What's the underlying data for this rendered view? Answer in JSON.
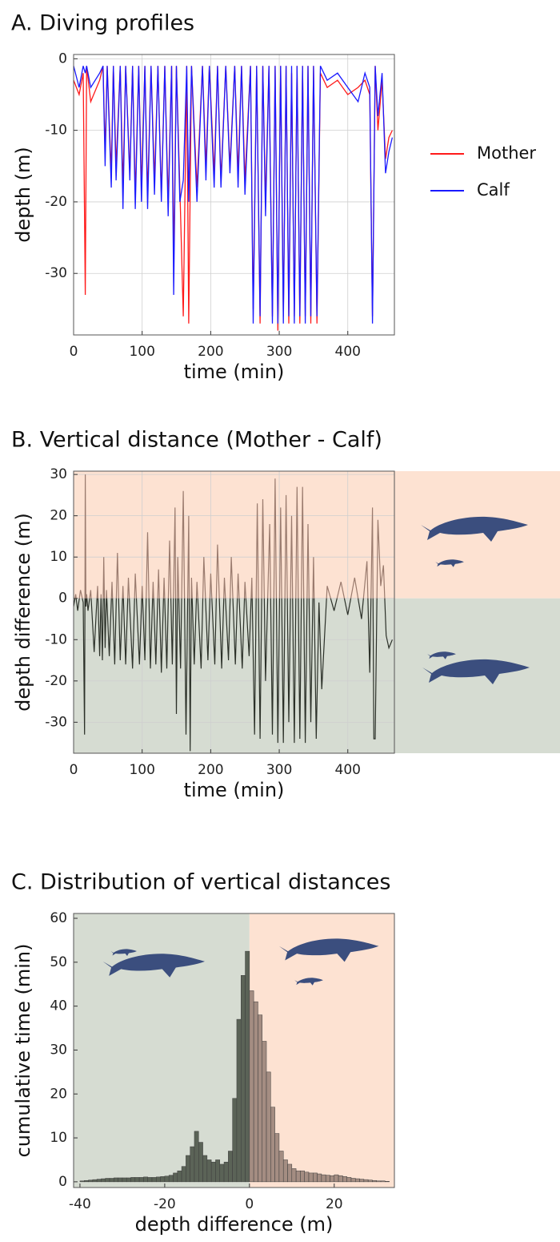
{
  "chart_data": [
    {
      "type": "line",
      "title": "A. Diving profiles",
      "x_label": "time (min)",
      "y_label": "depth (m)",
      "x": [
        0,
        8,
        14,
        17,
        19,
        25,
        38,
        43,
        46,
        49,
        55,
        58,
        62,
        68,
        72,
        76,
        82,
        86,
        90,
        95,
        99,
        104,
        108,
        113,
        118,
        123,
        128,
        133,
        138,
        143,
        146,
        150,
        155,
        160,
        165,
        168,
        172,
        180,
        188,
        193,
        198,
        205,
        210,
        215,
        222,
        228,
        235,
        240,
        245,
        250,
        258,
        262,
        267,
        272,
        276,
        280,
        285,
        290,
        294,
        298,
        302,
        306,
        310,
        314,
        318,
        322,
        326,
        330,
        334,
        338,
        342,
        346,
        350,
        355,
        360,
        370,
        385,
        400,
        415,
        425,
        432,
        436,
        440,
        444,
        450,
        455,
        460,
        465
      ],
      "series": [
        {
          "name": "Mother",
          "color": "#ff1a1a",
          "values": [
            -3,
            -5,
            -2,
            -33,
            -1,
            -6,
            -3,
            -1,
            -13,
            -1,
            -16,
            -1,
            -15,
            -1,
            -18,
            -1,
            -16,
            -1,
            -19,
            -1,
            -18,
            -1,
            -19,
            -1,
            -17,
            -1,
            -19,
            -1,
            -20,
            -1,
            -28,
            -1,
            -18,
            -36,
            -1,
            -37,
            -1,
            -18,
            -1,
            -15,
            -1,
            -16,
            -1,
            -17,
            -1,
            -15,
            -1,
            -16,
            -1,
            -17,
            -1,
            -35,
            -1,
            -37,
            -1,
            -20,
            -1,
            -36,
            -1,
            -38,
            -1,
            -36,
            -1,
            -37,
            -2,
            -36,
            -1,
            -37,
            -1,
            -36,
            -1,
            -37,
            -1,
            -37,
            -2,
            -4,
            -3,
            -5,
            -4,
            -3,
            -5,
            -36,
            -1,
            -10,
            -3,
            -14,
            -11,
            -10
          ]
        },
        {
          "name": "Calf",
          "color": "#1a1aff",
          "values": [
            -1,
            -4,
            -1,
            -2,
            -1,
            -4,
            -2,
            -1,
            -15,
            -1,
            -18,
            -1,
            -17,
            -1,
            -21,
            -1,
            -17,
            -1,
            -21,
            -1,
            -20,
            -1,
            -21,
            -1,
            -19,
            -1,
            -20,
            -1,
            -22,
            -1,
            -33,
            -1,
            -20,
            -17,
            -1,
            -20,
            -1,
            -20,
            -1,
            -17,
            -1,
            -18,
            -1,
            -18,
            -1,
            -16,
            -1,
            -18,
            -1,
            -19,
            -1,
            -37,
            -1,
            -36,
            -1,
            -22,
            -1,
            -37,
            -1,
            -37,
            -1,
            -37,
            -1,
            -36,
            -1,
            -37,
            -1,
            -36,
            -1,
            -37,
            -1,
            -36,
            -1,
            -36,
            -1,
            -3,
            -2,
            -4,
            -6,
            -2,
            -4,
            -37,
            -1,
            -8,
            -2,
            -16,
            -13,
            -11
          ]
        }
      ],
      "xlim": [
        0,
        468
      ],
      "ylim": [
        -38.6,
        0.6
      ],
      "xticks": [
        0,
        100,
        200,
        300,
        400
      ],
      "yticks": [
        0,
        -10,
        -20,
        -30
      ],
      "grid": true,
      "legend": "right"
    },
    {
      "type": "line",
      "title": "B. Vertical distance (Mother - Calf)",
      "x_label": "time (min)",
      "y_label": "depth difference (m)",
      "x": [
        0,
        3,
        6,
        10,
        14,
        16,
        17,
        18,
        19,
        21,
        25,
        30,
        35,
        38,
        40,
        42,
        44,
        46,
        48,
        52,
        56,
        60,
        64,
        68,
        72,
        76,
        80,
        86,
        90,
        96,
        100,
        104,
        108,
        112,
        116,
        120,
        124,
        128,
        132,
        136,
        140,
        144,
        148,
        150,
        152,
        156,
        160,
        164,
        168,
        170,
        172,
        176,
        180,
        186,
        190,
        196,
        200,
        206,
        210,
        216,
        220,
        226,
        230,
        236,
        240,
        246,
        250,
        256,
        260,
        264,
        268,
        272,
        276,
        280,
        286,
        290,
        294,
        298,
        302,
        306,
        310,
        314,
        318,
        322,
        326,
        330,
        334,
        338,
        342,
        346,
        350,
        354,
        358,
        362,
        370,
        380,
        390,
        400,
        410,
        420,
        428,
        432,
        436,
        438,
        440,
        444,
        448,
        452,
        456,
        460,
        465
      ],
      "values": [
        -2,
        1,
        -3,
        2,
        -1,
        -33,
        30,
        -2,
        1,
        -3,
        2,
        -13,
        3,
        -14,
        1,
        -15,
        10,
        -12,
        2,
        -14,
        4,
        -16,
        11,
        -15,
        3,
        -16,
        5,
        -17,
        6,
        -16,
        3,
        -15,
        16,
        -17,
        4,
        -16,
        7,
        -18,
        5,
        -17,
        14,
        -16,
        22,
        -28,
        10,
        -17,
        26,
        -33,
        20,
        -37,
        5,
        -16,
        4,
        -17,
        10,
        -15,
        6,
        -16,
        13,
        -17,
        5,
        -15,
        10,
        -16,
        6,
        -17,
        4,
        -14,
        5,
        -33,
        23,
        -34,
        24,
        -20,
        18,
        -33,
        29,
        -35,
        22,
        -35,
        25,
        -30,
        20,
        -35,
        27,
        -34,
        27,
        -35,
        18,
        -30,
        10,
        -34,
        -1,
        -22,
        3,
        -3,
        4,
        -4,
        5,
        -5,
        9,
        -18,
        22,
        -34,
        -34,
        19,
        3,
        8,
        -9,
        -12,
        -10
      ],
      "color": "#2b3028",
      "positive_color": "#9a7b6e",
      "xlim": [
        0,
        468
      ],
      "ylim": [
        -37.5,
        30.8
      ],
      "xticks": [
        0,
        100,
        200,
        300,
        400
      ],
      "yticks": [
        30,
        20,
        10,
        0,
        -10,
        -20,
        -30
      ],
      "grid": true
    },
    {
      "type": "histogram",
      "title": "C. Distribution of vertical distances",
      "x_label": "depth difference (m)",
      "y_label": "cumulative time (min)",
      "bins": [
        -40,
        -39,
        -38,
        -37,
        -36,
        -35,
        -34,
        -33,
        -32,
        -31,
        -30,
        -29,
        -28,
        -27,
        -26,
        -25,
        -24,
        -23,
        -22,
        -21,
        -20,
        -19,
        -18,
        -17,
        -16,
        -15,
        -14,
        -13,
        -12,
        -11,
        -10,
        -9,
        -8,
        -7,
        -6,
        -5,
        -4,
        -3,
        -2,
        -1,
        0,
        1,
        2,
        3,
        4,
        5,
        6,
        7,
        8,
        9,
        10,
        11,
        12,
        13,
        14,
        15,
        16,
        17,
        18,
        19,
        20,
        21,
        22,
        23,
        24,
        25,
        26,
        27,
        28,
        29,
        30,
        31,
        32,
        33
      ],
      "values": [
        0.2,
        0.3,
        0.4,
        0.5,
        0.6,
        0.7,
        0.8,
        0.8,
        0.9,
        0.9,
        0.9,
        0.9,
        1,
        1,
        1,
        1.1,
        1,
        1,
        1.1,
        1.2,
        1.3,
        1.5,
        2,
        2.5,
        3.5,
        6,
        8,
        11.5,
        9,
        6,
        5,
        4.5,
        5,
        4,
        4.5,
        7,
        19,
        37,
        47,
        52.5,
        43.5,
        41,
        38,
        32,
        25,
        17,
        11,
        7,
        5,
        4,
        3,
        2.5,
        2.5,
        2.2,
        2,
        2,
        1.8,
        1.6,
        1.5,
        1.4,
        1.6,
        1.4,
        1.2,
        1,
        0.8,
        0.7,
        0.6,
        0.5,
        0.4,
        0.3,
        0.2,
        0.2,
        0.1
      ],
      "color": "#5b6357",
      "positive_color": "#a48d82",
      "xlim": [
        -41.5,
        34.2
      ],
      "ylim": [
        -1.3,
        61.1
      ],
      "xticks": [
        -40,
        -20,
        0,
        20
      ],
      "yticks": [
        0,
        10,
        20,
        30,
        40,
        50,
        60
      ],
      "grid": false
    }
  ]
}
